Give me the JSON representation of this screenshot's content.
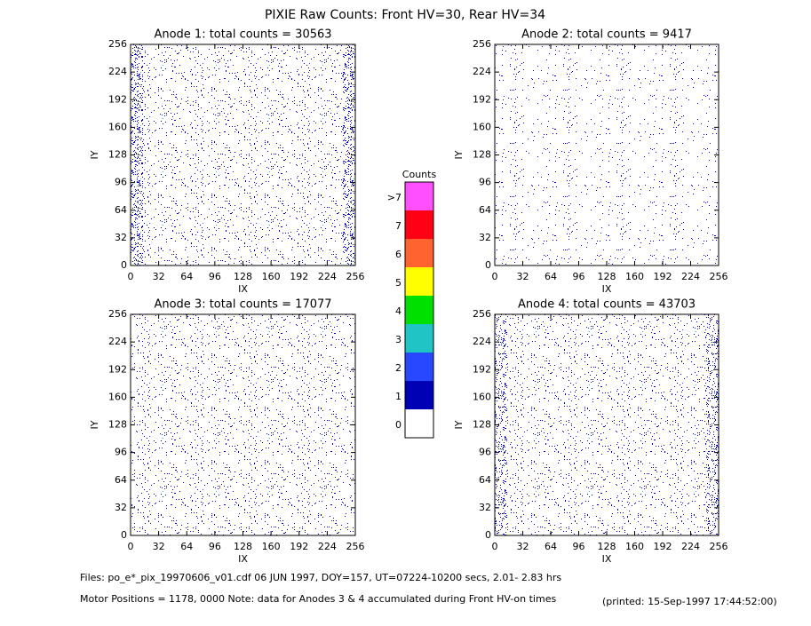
{
  "title": "PIXIE Raw Counts:  Front HV=30, Rear HV=34",
  "chart_data": [
    {
      "type": "heatmap",
      "title": "Anode 1: total counts = 30563",
      "x_label": "IX",
      "y_label": "IY",
      "xlim": [
        0,
        256
      ],
      "ylim": [
        0,
        256
      ],
      "xticks": [
        0,
        32,
        64,
        96,
        128,
        160,
        192,
        224,
        256
      ],
      "yticks": [
        0,
        32,
        64,
        96,
        128,
        160,
        192,
        224,
        256
      ]
    },
    {
      "type": "heatmap",
      "title": "Anode 2: total counts = 9417",
      "x_label": "IX",
      "y_label": "IY",
      "xlim": [
        0,
        256
      ],
      "ylim": [
        0,
        256
      ],
      "xticks": [
        0,
        32,
        64,
        96,
        128,
        160,
        192,
        224,
        256
      ],
      "yticks": [
        0,
        32,
        64,
        96,
        128,
        160,
        192,
        224,
        256
      ]
    },
    {
      "type": "heatmap",
      "title": "Anode 3: total counts = 17077",
      "x_label": "IX",
      "y_label": "IY",
      "xlim": [
        0,
        256
      ],
      "ylim": [
        0,
        256
      ],
      "xticks": [
        0,
        32,
        64,
        96,
        128,
        160,
        192,
        224,
        256
      ],
      "yticks": [
        0,
        32,
        64,
        96,
        128,
        160,
        192,
        224,
        256
      ]
    },
    {
      "type": "heatmap",
      "title": "Anode 4: total counts = 43703",
      "x_label": "IX",
      "y_label": "IY",
      "xlim": [
        0,
        256
      ],
      "ylim": [
        0,
        256
      ],
      "xticks": [
        0,
        32,
        64,
        96,
        128,
        160,
        192,
        224,
        256
      ],
      "yticks": [
        0,
        32,
        64,
        96,
        128,
        160,
        192,
        224,
        256
      ]
    }
  ],
  "colorbar": {
    "title": "Counts",
    "labels": [
      0,
      1,
      2,
      3,
      4,
      5,
      6,
      7,
      ">7"
    ],
    "colors": [
      "#ffffff",
      "#0000b4",
      "#2848ff",
      "#20c4c4",
      "#00e000",
      "#ffff00",
      "#ff6430",
      "#ff0014",
      "#ff50ff"
    ]
  },
  "footer": {
    "files": "Files: po_e*_pix_19970606_v01.cdf     06 JUN 1997, DOY=157, UT=07224-10200 secs,  2.01- 2.83 hrs",
    "motor": "Motor Positions = 1178, 0000    Note: data for Anodes 3 & 4 accumulated during Front HV-on times",
    "printed": "(printed: 15-Sep-1997 17:44:52:00)"
  }
}
